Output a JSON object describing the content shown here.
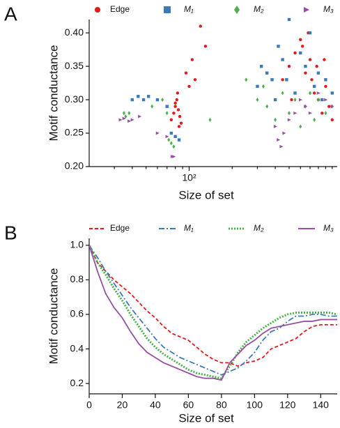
{
  "chart_data": [
    {
      "type": "scatter",
      "panel_label": "A",
      "xlabel": "Size of set",
      "ylabel": "Motif conductance",
      "xscale": "log",
      "xlim": [
        20,
        1084
      ],
      "ylim": [
        0.2,
        0.42
      ],
      "xticks": [
        {
          "value": 100,
          "label": "10²"
        }
      ],
      "xminorticks": [
        30,
        40,
        50,
        60,
        70,
        80,
        90,
        200,
        300,
        400,
        500,
        600,
        700,
        800,
        900,
        1000
      ],
      "yticks": [
        {
          "value": 0.2,
          "label": "0.20"
        },
        0.25,
        {
          "value": 0.3,
          "label": "0.30"
        },
        0.35,
        {
          "value": 0.4,
          "label": "0.40"
        }
      ],
      "series": [
        {
          "name": "Edge",
          "color": "#e31a1c",
          "marker": "circle",
          "x": [
            75,
            78,
            80,
            82,
            84,
            86,
            88,
            80,
            83,
            85,
            95,
            105,
            120,
            130,
            110,
            100,
            450,
            500,
            550,
            600,
            650,
            700,
            750,
            800,
            850,
            900,
            950,
            1000,
            520,
            620,
            680,
            720,
            780,
            880
          ],
          "values": [
            0.27,
            0.28,
            0.29,
            0.3,
            0.285,
            0.275,
            0.265,
            0.295,
            0.31,
            0.26,
            0.34,
            0.36,
            0.41,
            0.38,
            0.33,
            0.32,
            0.33,
            0.35,
            0.37,
            0.39,
            0.34,
            0.36,
            0.31,
            0.3,
            0.28,
            0.32,
            0.29,
            0.27,
            0.3,
            0.38,
            0.4,
            0.33,
            0.35,
            0.36
          ]
        },
        {
          "name": "M₁",
          "color": "#3a7ab8",
          "marker": "square",
          "x": [
            40,
            44,
            48,
            52,
            60,
            70,
            75,
            80,
            85,
            300,
            320,
            350,
            400,
            420,
            450,
            480,
            500,
            550,
            600,
            650,
            700,
            750,
            800,
            850,
            900,
            1000,
            380
          ],
          "values": [
            0.3,
            0.305,
            0.3,
            0.305,
            0.3,
            0.29,
            0.25,
            0.245,
            0.24,
            0.32,
            0.35,
            0.34,
            0.3,
            0.38,
            0.36,
            0.33,
            0.42,
            0.31,
            0.37,
            0.35,
            0.4,
            0.32,
            0.34,
            0.3,
            0.33,
            0.31,
            0.33
          ]
        },
        {
          "name": "M₂",
          "color": "#4daf4a",
          "marker": "diamond",
          "x": [
            35,
            36,
            38,
            55,
            65,
            70,
            72,
            75,
            78,
            140,
            250,
            300,
            350,
            400,
            450,
            500,
            550,
            600,
            650,
            700,
            750,
            800,
            900,
            1000,
            330
          ],
          "values": [
            0.28,
            0.275,
            0.28,
            0.29,
            0.3,
            0.28,
            0.24,
            0.235,
            0.23,
            0.27,
            0.33,
            0.3,
            0.29,
            0.27,
            0.31,
            0.28,
            0.3,
            0.26,
            0.29,
            0.31,
            0.27,
            0.3,
            0.28,
            0.29,
            0.32
          ]
        },
        {
          "name": "M₃",
          "color": "#984ea3",
          "marker": "triangle",
          "x": [
            33,
            35,
            38,
            40,
            45,
            60,
            70,
            76,
            78,
            400,
            420,
            440,
            460,
            500,
            550,
            600,
            650,
            700,
            800,
            900,
            1000
          ],
          "values": [
            0.27,
            0.272,
            0.268,
            0.27,
            0.275,
            0.25,
            0.245,
            0.215,
            0.215,
            0.26,
            0.24,
            0.23,
            0.25,
            0.27,
            0.28,
            0.3,
            0.29,
            0.28,
            0.31,
            0.3,
            0.29
          ]
        }
      ]
    },
    {
      "type": "line",
      "panel_label": "B",
      "xlabel": "Size of set",
      "ylabel": "Motif conductance",
      "xlim": [
        0,
        150
      ],
      "ylim": [
        0.14,
        1.04
      ],
      "xticks": [
        0,
        20,
        40,
        60,
        80,
        100,
        120,
        140
      ],
      "yticks": [
        0.2,
        0.4,
        0.6,
        0.8,
        {
          "value": 1,
          "label": "1.0"
        }
      ],
      "x": [
        0,
        5,
        10,
        15,
        20,
        25,
        30,
        35,
        40,
        45,
        50,
        55,
        60,
        65,
        70,
        75,
        80,
        85,
        90,
        95,
        100,
        105,
        110,
        115,
        120,
        125,
        130,
        135,
        140,
        145,
        150
      ],
      "series": [
        {
          "name": "Edge",
          "color": "#e31a1c",
          "dash": "5,3",
          "values": [
            1.0,
            0.9,
            0.85,
            0.8,
            0.76,
            0.72,
            0.67,
            0.62,
            0.58,
            0.53,
            0.49,
            0.47,
            0.45,
            0.41,
            0.37,
            0.34,
            0.32,
            0.32,
            0.3,
            0.32,
            0.33,
            0.35,
            0.4,
            0.42,
            0.44,
            0.46,
            0.5,
            0.53,
            0.54,
            0.54,
            0.54
          ]
        },
        {
          "name": "M₁",
          "color": "#3a7ab8",
          "dash": "8,3,2,3",
          "values": [
            1.0,
            0.93,
            0.85,
            0.78,
            0.71,
            0.64,
            0.58,
            0.52,
            0.46,
            0.41,
            0.38,
            0.35,
            0.33,
            0.31,
            0.29,
            0.27,
            0.25,
            0.27,
            0.29,
            0.33,
            0.38,
            0.45,
            0.5,
            0.52,
            0.56,
            0.59,
            0.59,
            0.6,
            0.6,
            0.59,
            0.59
          ]
        },
        {
          "name": "M₂",
          "color": "#4daf4a",
          "dash": "2,2",
          "values": [
            1.0,
            0.9,
            0.83,
            0.75,
            0.68,
            0.6,
            0.53,
            0.46,
            0.41,
            0.37,
            0.34,
            0.31,
            0.28,
            0.26,
            0.25,
            0.24,
            0.23,
            0.3,
            0.38,
            0.44,
            0.48,
            0.52,
            0.55,
            0.58,
            0.6,
            0.61,
            0.61,
            0.61,
            0.61,
            0.61,
            0.6
          ]
        },
        {
          "name": "M₃",
          "color": "#984ea3",
          "dash": "",
          "values": [
            1.0,
            0.85,
            0.72,
            0.64,
            0.58,
            0.5,
            0.43,
            0.38,
            0.35,
            0.32,
            0.3,
            0.28,
            0.26,
            0.24,
            0.23,
            0.23,
            0.22,
            0.32,
            0.37,
            0.42,
            0.45,
            0.49,
            0.52,
            0.53,
            0.54,
            0.55,
            0.56,
            0.56,
            0.57,
            0.57,
            0.57
          ]
        }
      ]
    }
  ]
}
